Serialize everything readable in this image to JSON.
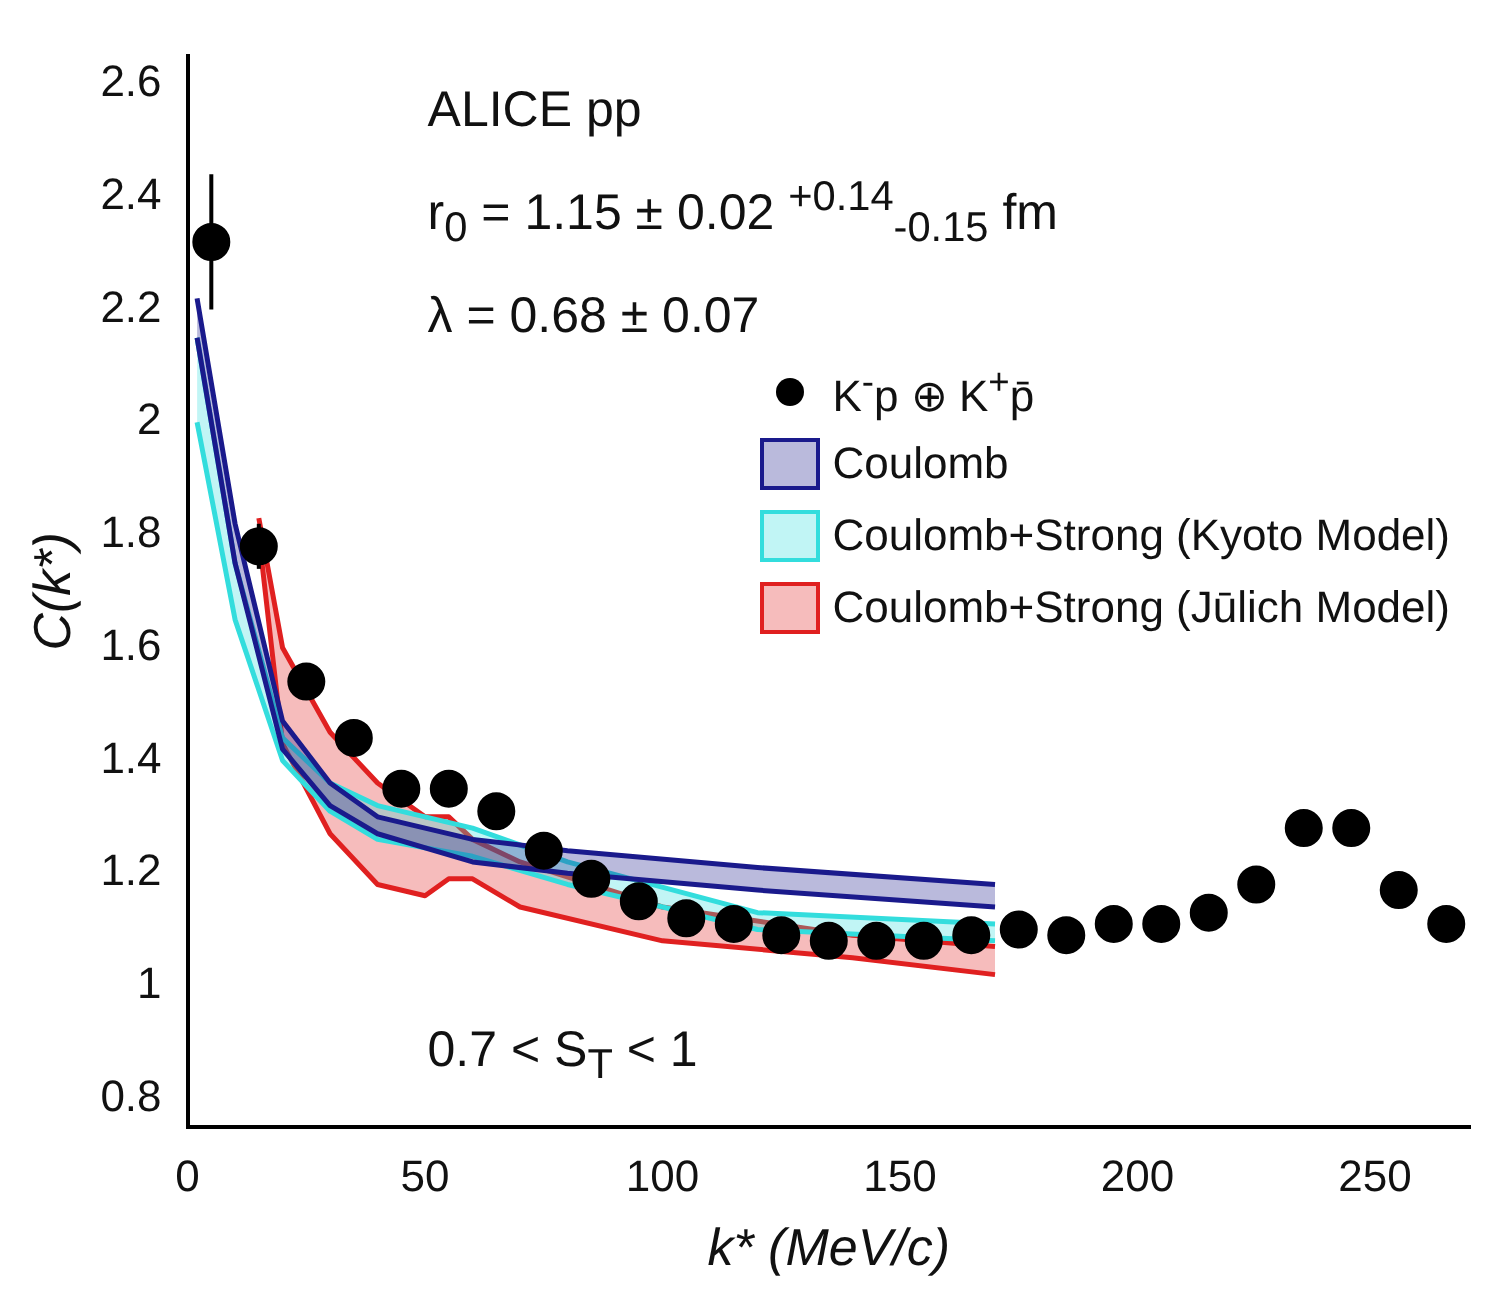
{
  "chart_data": {
    "type": "scatter",
    "xlabel": "k* (MeV/c)",
    "ylabel": "C(k*)",
    "annotations": [
      "ALICE pp",
      "r$_{0}$ = 1.15 ± 0.02 $^{+0.14}$$_{-0.15}$ fm",
      "λ = 0.68 ± 0.07",
      "0.7 < S$_{T}$ < 1"
    ],
    "xlim": [
      0,
      270
    ],
    "xticks": [
      0,
      50,
      100,
      150,
      200,
      250
    ],
    "ylim": [
      0.75,
      2.65
    ],
    "yticks": [
      0.8,
      1,
      1.2,
      1.4,
      1.6,
      1.8,
      2,
      2.2,
      2.4,
      2.6
    ],
    "grid": false,
    "legend": "top right",
    "marker": "circle",
    "series": [
      {
        "name": "K$^{-}$p ⊕ K$^{+}$p̄",
        "type": "scatter",
        "color": "#000000",
        "x": [
          5,
          15,
          25,
          35,
          45,
          55,
          65,
          75,
          85,
          95,
          105,
          115,
          125,
          135,
          145,
          155,
          165,
          175,
          185,
          195,
          205,
          215,
          225,
          235,
          245,
          255,
          265
        ],
        "values": [
          2.32,
          1.78,
          1.54,
          1.44,
          1.35,
          1.35,
          1.31,
          1.24,
          1.19,
          1.15,
          1.12,
          1.11,
          1.09,
          1.08,
          1.08,
          1.08,
          1.09,
          1.1,
          1.09,
          1.11,
          1.11,
          1.13,
          1.18,
          1.28,
          1.28,
          1.17,
          1.11
        ],
        "errors": [
          0.12,
          0.04,
          null,
          null,
          null,
          null,
          null,
          null,
          null,
          null,
          null,
          null,
          null,
          null,
          null,
          null,
          null,
          null,
          null,
          null,
          null,
          null,
          null,
          null,
          null,
          null,
          null
        ]
      },
      {
        "type": "line",
        "marker": "none",
        "color": "#1a1a8c",
        "x": [
          2,
          10,
          20,
          30,
          40,
          60,
          80,
          120,
          170
        ],
        "values": [
          2.15,
          1.75,
          1.42,
          1.32,
          1.27,
          1.22,
          1.2,
          1.17,
          1.14
        ]
      },
      {
        "name": "Coulomb",
        "type": "area",
        "marker": "none",
        "color": "#1a1a8c",
        "x": [
          2,
          10,
          20,
          30,
          40,
          60,
          80,
          120,
          170
        ],
        "values": [
          2.22,
          1.82,
          1.47,
          1.36,
          1.3,
          1.26,
          1.24,
          1.21,
          1.18
        ]
      },
      {
        "type": "line",
        "marker": "none",
        "color": "#33dddd",
        "x": [
          2,
          10,
          20,
          30,
          40,
          60,
          80,
          120,
          170
        ],
        "values": [
          2,
          1.65,
          1.4,
          1.31,
          1.26,
          1.23,
          1.18,
          1.1,
          1.08
        ]
      },
      {
        "name": "Coulomb+Strong (Kyoto Model)",
        "type": "area",
        "marker": "none",
        "color": "#33dddd",
        "x": [
          2,
          10,
          20,
          30,
          40,
          60,
          80,
          120,
          170
        ],
        "values": [
          2.15,
          1.75,
          1.44,
          1.36,
          1.32,
          1.28,
          1.22,
          1.13,
          1.11
        ]
      },
      {
        "type": "line",
        "marker": "none",
        "color": "#e02020",
        "x": [
          15,
          20,
          30,
          40,
          50,
          55,
          60,
          70,
          100,
          140,
          170
        ],
        "values": [
          1.8,
          1.43,
          1.27,
          1.18,
          1.16,
          1.19,
          1.19,
          1.14,
          1.08,
          1.05,
          1.02
        ]
      },
      {
        "name": "Coulomb+Strong (Jūlich Model)",
        "type": "area",
        "marker": "none",
        "color": "#e02020",
        "x": [
          15,
          20,
          30,
          40,
          50,
          55,
          60,
          70,
          100,
          140,
          170
        ],
        "values": [
          1.83,
          1.6,
          1.45,
          1.36,
          1.3,
          1.3,
          1.26,
          1.22,
          1.14,
          1.09,
          1.07
        ]
      }
    ]
  }
}
